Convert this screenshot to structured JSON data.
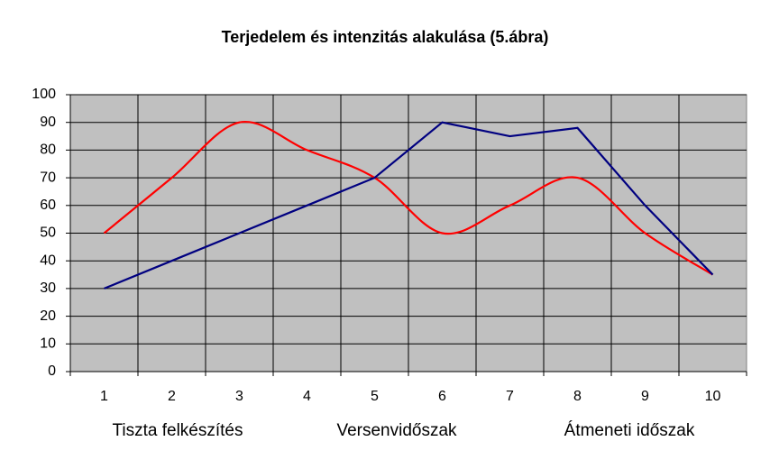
{
  "chart_data": {
    "type": "line",
    "title": "Terjedelem és intenzitás alakulása (5.ábra)",
    "categories": [
      "1",
      "2",
      "3",
      "4",
      "5",
      "6",
      "7",
      "8",
      "9",
      "10"
    ],
    "series": [
      {
        "color": "#ff0000",
        "smooth": true,
        "values": [
          50,
          70,
          90,
          80,
          70,
          50,
          60,
          70,
          50,
          35
        ]
      },
      {
        "color": "#000080",
        "smooth": false,
        "values": [
          30,
          40,
          50,
          60,
          70,
          90,
          85,
          88,
          60,
          35
        ]
      }
    ],
    "ylim": [
      0,
      100
    ],
    "yticks": [
      0,
      10,
      20,
      30,
      40,
      50,
      60,
      70,
      80,
      90,
      100
    ],
    "grid": true,
    "annotations": [
      "Tiszta felkészítés",
      "Versenvidőszak",
      "Átmeneti időszak"
    ]
  }
}
